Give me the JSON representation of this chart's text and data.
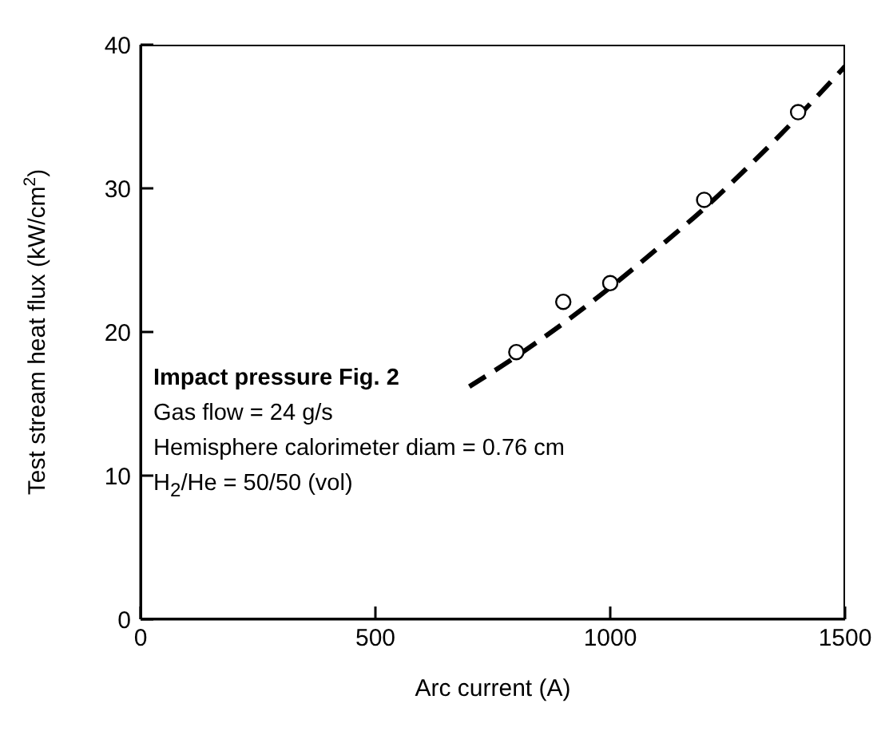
{
  "chart_data": {
    "type": "scatter",
    "xlabel": "Arc current (A)",
    "ylabel": "Test stream heat flux (kW/cm$^{2}$)",
    "x": [
      800,
      900,
      1000,
      1200,
      1400
    ],
    "series": [
      {
        "color": "#000000",
        "marker": "circle",
        "values": [
          18.6,
          22.1,
          23.4,
          29.2,
          35.3
        ]
      },
      {
        "type": "line",
        "color": "#000000",
        "marker": "none",
        "line_style": "dashed",
        "x": [
          700,
          800,
          900,
          1000,
          1100,
          1200,
          1300,
          1400,
          1500
        ],
        "values": [
          16.2,
          18.3,
          20.6,
          23.1,
          25.8,
          28.6,
          31.7,
          35.0,
          38.5
        ]
      }
    ],
    "xlim": [
      0,
      1500
    ],
    "xticks": [
      0,
      500,
      1000,
      1500
    ],
    "ylim": [
      0,
      40
    ],
    "yticks": [
      0,
      10,
      20,
      30,
      40
    ],
    "grid": false,
    "annotations": [
      "Impact pressure Fig. 2",
      "Gas flow = 24 g/s",
      "Hemisphere calorimeter diam = 0.76 cm",
      "H$_{2}$/He = 50/50 (vol)"
    ]
  }
}
